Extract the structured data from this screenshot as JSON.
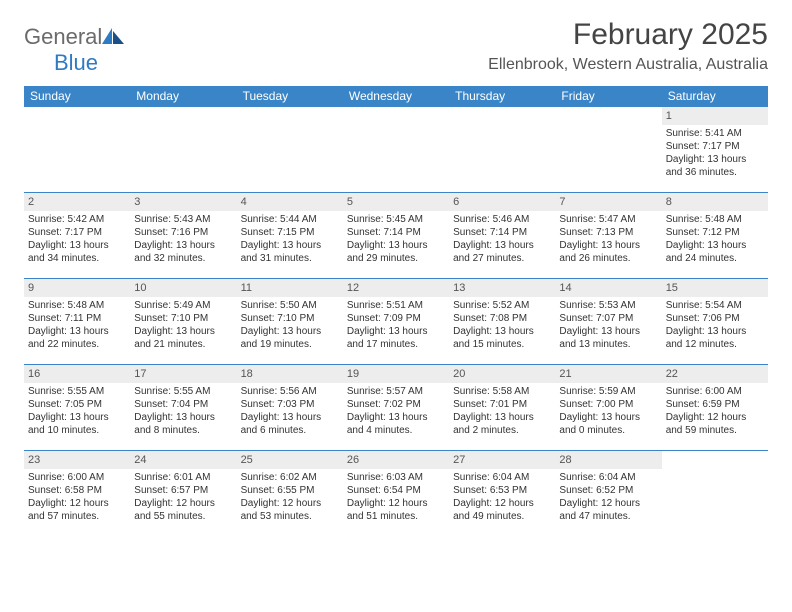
{
  "logo": {
    "text1": "General",
    "text2": "Blue"
  },
  "title": "February 2025",
  "location": "Ellenbrook, Western Australia, Australia",
  "colors": {
    "header_bg": "#3a85c7",
    "header_text": "#ffffff",
    "daynum_bg": "#ededed",
    "border": "#3a85c7",
    "logo_gray": "#6b6b6b",
    "logo_blue": "#2f7bc3"
  },
  "day_headers": [
    "Sunday",
    "Monday",
    "Tuesday",
    "Wednesday",
    "Thursday",
    "Friday",
    "Saturday"
  ],
  "weeks": [
    [
      null,
      null,
      null,
      null,
      null,
      null,
      {
        "n": "1",
        "sr": "5:41 AM",
        "ss": "7:17 PM",
        "dl1": "13 hours",
        "dl2": "and 36 minutes."
      }
    ],
    [
      {
        "n": "2",
        "sr": "5:42 AM",
        "ss": "7:17 PM",
        "dl1": "13 hours",
        "dl2": "and 34 minutes."
      },
      {
        "n": "3",
        "sr": "5:43 AM",
        "ss": "7:16 PM",
        "dl1": "13 hours",
        "dl2": "and 32 minutes."
      },
      {
        "n": "4",
        "sr": "5:44 AM",
        "ss": "7:15 PM",
        "dl1": "13 hours",
        "dl2": "and 31 minutes."
      },
      {
        "n": "5",
        "sr": "5:45 AM",
        "ss": "7:14 PM",
        "dl1": "13 hours",
        "dl2": "and 29 minutes."
      },
      {
        "n": "6",
        "sr": "5:46 AM",
        "ss": "7:14 PM",
        "dl1": "13 hours",
        "dl2": "and 27 minutes."
      },
      {
        "n": "7",
        "sr": "5:47 AM",
        "ss": "7:13 PM",
        "dl1": "13 hours",
        "dl2": "and 26 minutes."
      },
      {
        "n": "8",
        "sr": "5:48 AM",
        "ss": "7:12 PM",
        "dl1": "13 hours",
        "dl2": "and 24 minutes."
      }
    ],
    [
      {
        "n": "9",
        "sr": "5:48 AM",
        "ss": "7:11 PM",
        "dl1": "13 hours",
        "dl2": "and 22 minutes."
      },
      {
        "n": "10",
        "sr": "5:49 AM",
        "ss": "7:10 PM",
        "dl1": "13 hours",
        "dl2": "and 21 minutes."
      },
      {
        "n": "11",
        "sr": "5:50 AM",
        "ss": "7:10 PM",
        "dl1": "13 hours",
        "dl2": "and 19 minutes."
      },
      {
        "n": "12",
        "sr": "5:51 AM",
        "ss": "7:09 PM",
        "dl1": "13 hours",
        "dl2": "and 17 minutes."
      },
      {
        "n": "13",
        "sr": "5:52 AM",
        "ss": "7:08 PM",
        "dl1": "13 hours",
        "dl2": "and 15 minutes."
      },
      {
        "n": "14",
        "sr": "5:53 AM",
        "ss": "7:07 PM",
        "dl1": "13 hours",
        "dl2": "and 13 minutes."
      },
      {
        "n": "15",
        "sr": "5:54 AM",
        "ss": "7:06 PM",
        "dl1": "13 hours",
        "dl2": "and 12 minutes."
      }
    ],
    [
      {
        "n": "16",
        "sr": "5:55 AM",
        "ss": "7:05 PM",
        "dl1": "13 hours",
        "dl2": "and 10 minutes."
      },
      {
        "n": "17",
        "sr": "5:55 AM",
        "ss": "7:04 PM",
        "dl1": "13 hours",
        "dl2": "and 8 minutes."
      },
      {
        "n": "18",
        "sr": "5:56 AM",
        "ss": "7:03 PM",
        "dl1": "13 hours",
        "dl2": "and 6 minutes."
      },
      {
        "n": "19",
        "sr": "5:57 AM",
        "ss": "7:02 PM",
        "dl1": "13 hours",
        "dl2": "and 4 minutes."
      },
      {
        "n": "20",
        "sr": "5:58 AM",
        "ss": "7:01 PM",
        "dl1": "13 hours",
        "dl2": "and 2 minutes."
      },
      {
        "n": "21",
        "sr": "5:59 AM",
        "ss": "7:00 PM",
        "dl1": "13 hours",
        "dl2": "and 0 minutes."
      },
      {
        "n": "22",
        "sr": "6:00 AM",
        "ss": "6:59 PM",
        "dl1": "12 hours",
        "dl2": "and 59 minutes."
      }
    ],
    [
      {
        "n": "23",
        "sr": "6:00 AM",
        "ss": "6:58 PM",
        "dl1": "12 hours",
        "dl2": "and 57 minutes."
      },
      {
        "n": "24",
        "sr": "6:01 AM",
        "ss": "6:57 PM",
        "dl1": "12 hours",
        "dl2": "and 55 minutes."
      },
      {
        "n": "25",
        "sr": "6:02 AM",
        "ss": "6:55 PM",
        "dl1": "12 hours",
        "dl2": "and 53 minutes."
      },
      {
        "n": "26",
        "sr": "6:03 AM",
        "ss": "6:54 PM",
        "dl1": "12 hours",
        "dl2": "and 51 minutes."
      },
      {
        "n": "27",
        "sr": "6:04 AM",
        "ss": "6:53 PM",
        "dl1": "12 hours",
        "dl2": "and 49 minutes."
      },
      {
        "n": "28",
        "sr": "6:04 AM",
        "ss": "6:52 PM",
        "dl1": "12 hours",
        "dl2": "and 47 minutes."
      },
      null
    ]
  ],
  "labels": {
    "sunrise": "Sunrise: ",
    "sunset": "Sunset: ",
    "daylight": "Daylight: "
  }
}
